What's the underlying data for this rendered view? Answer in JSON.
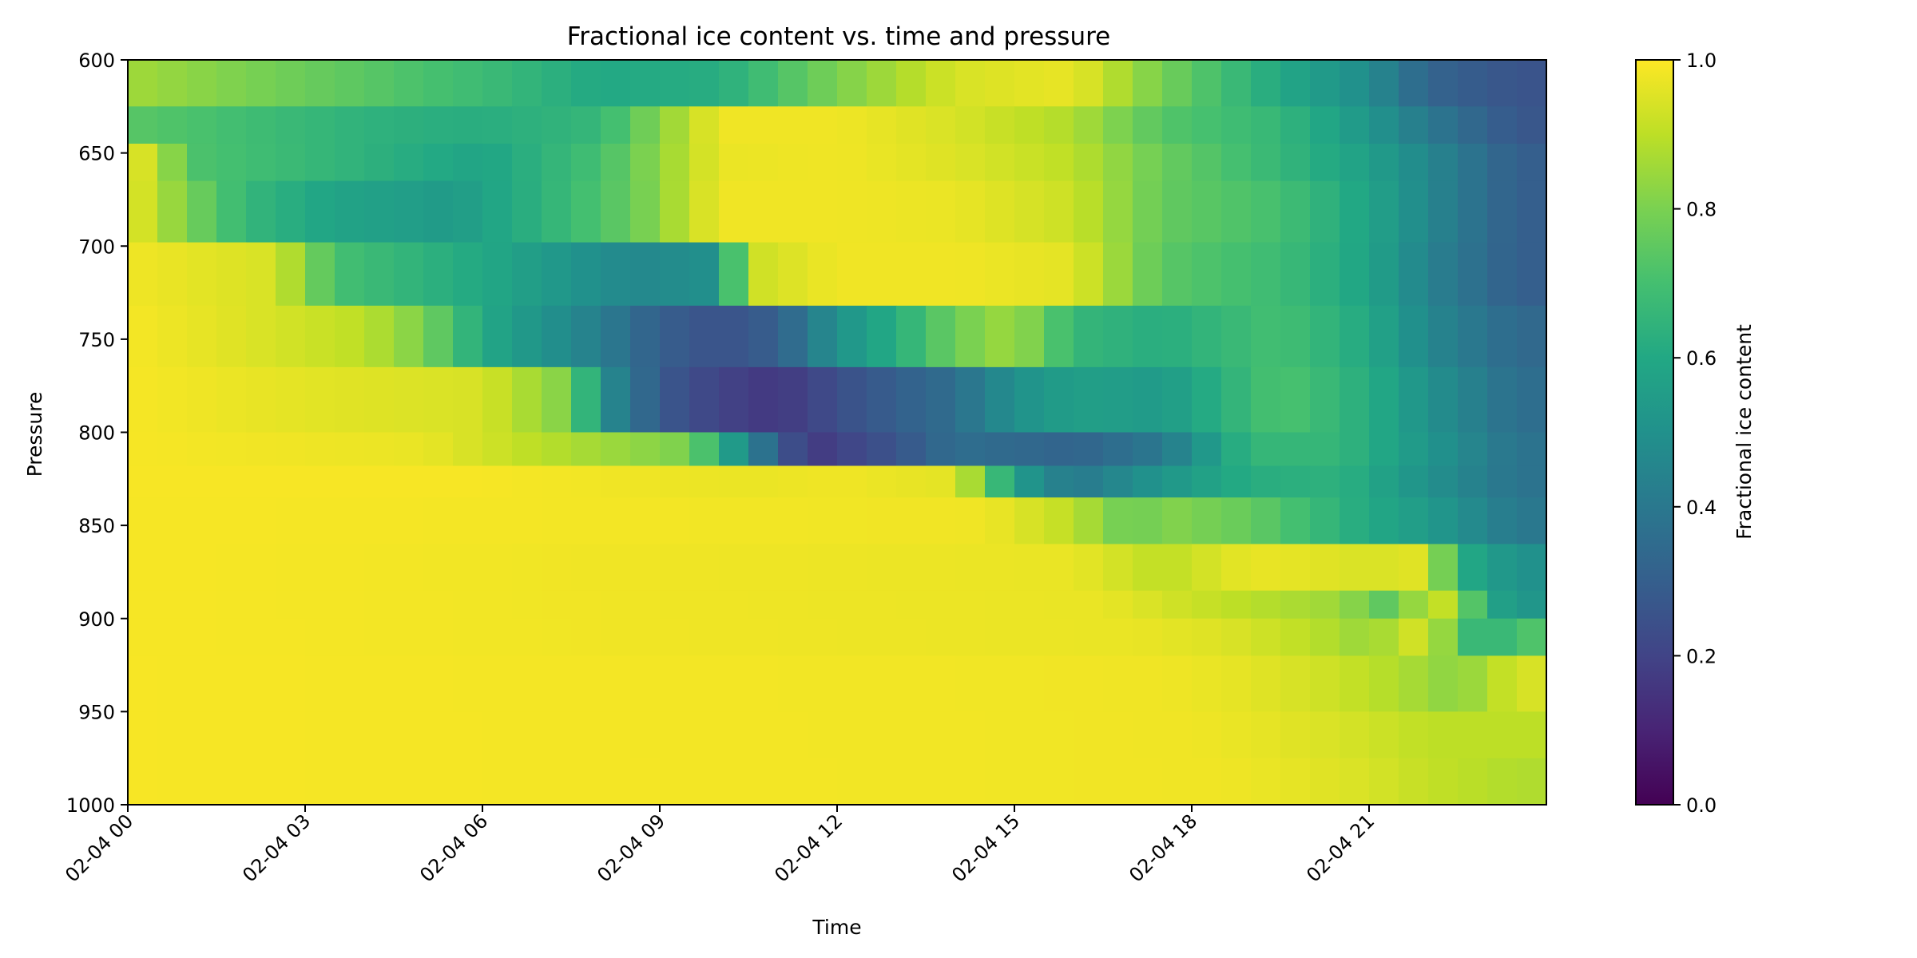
{
  "chart_data": {
    "type": "heatmap",
    "title": "Fractional ice content vs. time and pressure",
    "xlabel": "Time",
    "ylabel": "Pressure",
    "colorbar_label": "Fractional ice content",
    "colormap": "viridis",
    "clim": [
      0.0,
      1.0
    ],
    "x_start": "2024-02-04 00:00",
    "x_end": "2024-02-05 00:00",
    "time_step_minutes": 30,
    "x_tick_labels": [
      "02-04 00",
      "02-04 03",
      "02-04 06",
      "02-04 09",
      "02-04 12",
      "02-04 15",
      "02-04 18",
      "02-04 21"
    ],
    "y_range": [
      600,
      1000
    ],
    "y_inverted": true,
    "y_tick_labels": [
      "600",
      "650",
      "700",
      "750",
      "800",
      "850",
      "900",
      "950",
      "1000"
    ],
    "colorbar_tick_labels": [
      "0.0",
      "0.2",
      "0.4",
      "0.6",
      "0.8",
      "1.0"
    ],
    "pressure_rows": [
      {
        "p_top": 600,
        "p_bottom": 625,
        "x": [
          0.0,
          4.0,
          6.0,
          8.0,
          10.0,
          12.0,
          14.0,
          16.0,
          17.5,
          19.5,
          21.0,
          22.0,
          23.5
        ],
        "v": [
          0.86,
          0.74,
          0.68,
          0.6,
          0.62,
          0.8,
          0.94,
          0.97,
          0.79,
          0.6,
          0.48,
          0.32,
          0.26
        ]
      },
      {
        "p_top": 625,
        "p_bottom": 645,
        "x": [
          0.0,
          4.0,
          6.0,
          8.0,
          10.0,
          12.0,
          14.0,
          16.0,
          17.5,
          19.5,
          21.0,
          22.0,
          23.5
        ],
        "v": [
          0.74,
          0.64,
          0.62,
          0.66,
          0.98,
          0.98,
          0.94,
          0.88,
          0.73,
          0.66,
          0.52,
          0.4,
          0.27
        ]
      },
      {
        "p_top": 645,
        "p_bottom": 665,
        "x": [
          0.0,
          0.5,
          1.0,
          4.0,
          6.0,
          8.0,
          10.0,
          12.0,
          14.0,
          16.0,
          17.5,
          19.5,
          21.0,
          22.0,
          23.5
        ],
        "v": [
          0.96,
          0.92,
          0.72,
          0.64,
          0.58,
          0.7,
          0.97,
          0.98,
          0.95,
          0.9,
          0.77,
          0.66,
          0.56,
          0.46,
          0.3
        ]
      },
      {
        "p_top": 665,
        "p_bottom": 698,
        "x": [
          0.0,
          1.0,
          2.0,
          3.5,
          5.5,
          7.0,
          8.5,
          10.0,
          12.0,
          14.0,
          16.0,
          17.5,
          19.5,
          21.0,
          22.0,
          23.5
        ],
        "v": [
          0.98,
          0.8,
          0.66,
          0.58,
          0.54,
          0.64,
          0.76,
          0.98,
          0.98,
          0.97,
          0.92,
          0.76,
          0.7,
          0.58,
          0.46,
          0.3
        ]
      },
      {
        "p_top": 698,
        "p_bottom": 732,
        "x": [
          0.0,
          2.5,
          3.5,
          6.0,
          8.5,
          10.0,
          10.5,
          12.0,
          14.0,
          16.0,
          17.5,
          19.5,
          21.0,
          22.0,
          23.5
        ],
        "v": [
          0.98,
          0.94,
          0.7,
          0.6,
          0.46,
          0.5,
          0.92,
          0.98,
          0.98,
          0.96,
          0.74,
          0.68,
          0.58,
          0.44,
          0.3
        ]
      },
      {
        "p_top": 732,
        "p_bottom": 765,
        "x": [
          0.0,
          2.0,
          4.0,
          5.0,
          6.0,
          8.0,
          9.0,
          10.0,
          11.0,
          12.0,
          13.0,
          14.0,
          15.0,
          16.0,
          17.5,
          19.5,
          21.0,
          22.0,
          23.5
        ],
        "v": [
          0.99,
          0.95,
          0.9,
          0.8,
          0.6,
          0.42,
          0.3,
          0.25,
          0.3,
          0.5,
          0.62,
          0.78,
          0.86,
          0.66,
          0.62,
          0.7,
          0.6,
          0.46,
          0.34
        ]
      },
      {
        "p_top": 765,
        "p_bottom": 800,
        "x": [
          0.0,
          3.0,
          6.0,
          7.5,
          8.0,
          9.0,
          10.0,
          11.0,
          12.0,
          13.0,
          14.0,
          15.0,
          16.0,
          17.5,
          19.5,
          21.0,
          22.0,
          23.5
        ],
        "v": [
          0.99,
          0.96,
          0.94,
          0.8,
          0.5,
          0.28,
          0.2,
          0.16,
          0.24,
          0.3,
          0.36,
          0.5,
          0.56,
          0.54,
          0.72,
          0.62,
          0.5,
          0.36
        ]
      },
      {
        "p_top": 800,
        "p_bottom": 818,
        "x": [
          0.0,
          5.0,
          9.5,
          10.5,
          11.5,
          13.0,
          14.0,
          15.0,
          16.0,
          17.5,
          19.0,
          20.5,
          22.0,
          23.5
        ],
        "v": [
          0.99,
          0.97,
          0.8,
          0.45,
          0.16,
          0.26,
          0.36,
          0.34,
          0.32,
          0.4,
          0.66,
          0.66,
          0.52,
          0.38
        ]
      },
      {
        "p_top": 818,
        "p_bottom": 835,
        "x": [
          0.0,
          6.0,
          10.5,
          12.0,
          14.0,
          14.5,
          15.0,
          16.0,
          17.5,
          19.0,
          20.5,
          22.0,
          23.5
        ],
        "v": [
          0.99,
          0.99,
          0.97,
          0.98,
          0.96,
          0.78,
          0.55,
          0.4,
          0.52,
          0.62,
          0.64,
          0.5,
          0.38
        ]
      },
      {
        "p_top": 835,
        "p_bottom": 860,
        "x": [
          0.0,
          14.5,
          16.0,
          17.0,
          17.5,
          19.0,
          20.0,
          21.0,
          22.0,
          23.5
        ],
        "v": [
          0.99,
          0.98,
          0.9,
          0.76,
          0.82,
          0.76,
          0.68,
          0.6,
          0.54,
          0.4
        ]
      },
      {
        "p_top": 860,
        "p_bottom": 885,
        "x": [
          0.0,
          16.0,
          17.5,
          19.0,
          20.0,
          21.0,
          22.0,
          22.5,
          23.5
        ],
        "v": [
          0.99,
          0.97,
          0.9,
          0.97,
          0.96,
          0.94,
          0.96,
          0.62,
          0.5
        ]
      },
      {
        "p_top": 885,
        "p_bottom": 900,
        "x": [
          0.0,
          16.5,
          18.0,
          19.5,
          20.5,
          21.5,
          22.0,
          22.5,
          23.0,
          23.5
        ],
        "v": [
          0.99,
          0.97,
          0.92,
          0.88,
          0.85,
          0.72,
          0.96,
          0.86,
          0.6,
          0.52
        ]
      },
      {
        "p_top": 900,
        "p_bottom": 920,
        "x": [
          0.0,
          17.0,
          18.5,
          20.0,
          21.0,
          22.0,
          22.5,
          23.0,
          23.5
        ],
        "v": [
          0.99,
          0.97,
          0.95,
          0.9,
          0.84,
          0.96,
          0.72,
          0.62,
          0.72
        ]
      },
      {
        "p_top": 920,
        "p_bottom": 950,
        "x": [
          0.0,
          17.5,
          19.0,
          20.5,
          21.5,
          22.5,
          23.5
        ],
        "v": [
          0.99,
          0.98,
          0.96,
          0.92,
          0.88,
          0.82,
          0.94
        ]
      },
      {
        "p_top": 950,
        "p_bottom": 975,
        "x": [
          0.0,
          18.0,
          19.5,
          21.0,
          22.0,
          23.5
        ],
        "v": [
          0.99,
          0.98,
          0.96,
          0.93,
          0.9,
          0.9
        ]
      },
      {
        "p_top": 975,
        "p_bottom": 1000,
        "x": [
          0.0,
          18.5,
          20.0,
          21.0,
          22.0,
          23.5
        ],
        "v": [
          0.99,
          0.98,
          0.96,
          0.94,
          0.91,
          0.88
        ]
      }
    ]
  }
}
